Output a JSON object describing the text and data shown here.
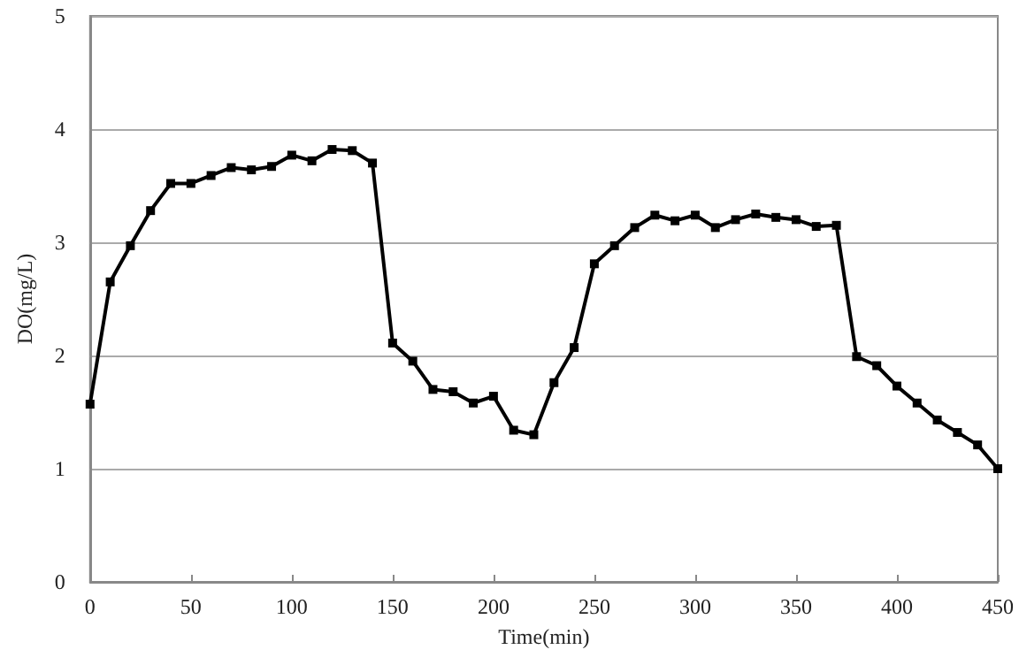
{
  "chart_data": {
    "type": "line",
    "xlabel": "Time(min)",
    "ylabel": "DO(mg/L)",
    "x": [
      0,
      10,
      20,
      30,
      40,
      50,
      60,
      70,
      80,
      90,
      100,
      110,
      120,
      130,
      140,
      150,
      160,
      170,
      180,
      190,
      200,
      210,
      220,
      230,
      240,
      250,
      260,
      270,
      280,
      290,
      300,
      310,
      320,
      330,
      340,
      350,
      360,
      370,
      380,
      390,
      400,
      410,
      420,
      430,
      440,
      450
    ],
    "series": [
      {
        "color": "#000000",
        "values": [
          1.57,
          2.65,
          2.97,
          3.28,
          3.52,
          3.52,
          3.59,
          3.66,
          3.64,
          3.67,
          3.77,
          3.72,
          3.82,
          3.81,
          3.7,
          2.11,
          1.95,
          1.7,
          1.68,
          1.58,
          1.64,
          1.34,
          1.3,
          1.76,
          2.07,
          2.81,
          2.97,
          3.13,
          3.24,
          3.19,
          3.24,
          3.13,
          3.2,
          3.25,
          3.22,
          3.2,
          3.14,
          3.15,
          1.99,
          1.91,
          1.73,
          1.58,
          1.43,
          1.32,
          1.21,
          1.0
        ]
      }
    ],
    "xlim": [
      0,
      450
    ],
    "xticks": [
      0,
      50,
      100,
      150,
      200,
      250,
      300,
      350,
      400,
      450
    ],
    "ylim": [
      0,
      5
    ],
    "yticks": [
      0,
      1,
      2,
      3,
      4,
      5
    ],
    "grid": "y",
    "marker": "square",
    "line_style": "solid"
  }
}
